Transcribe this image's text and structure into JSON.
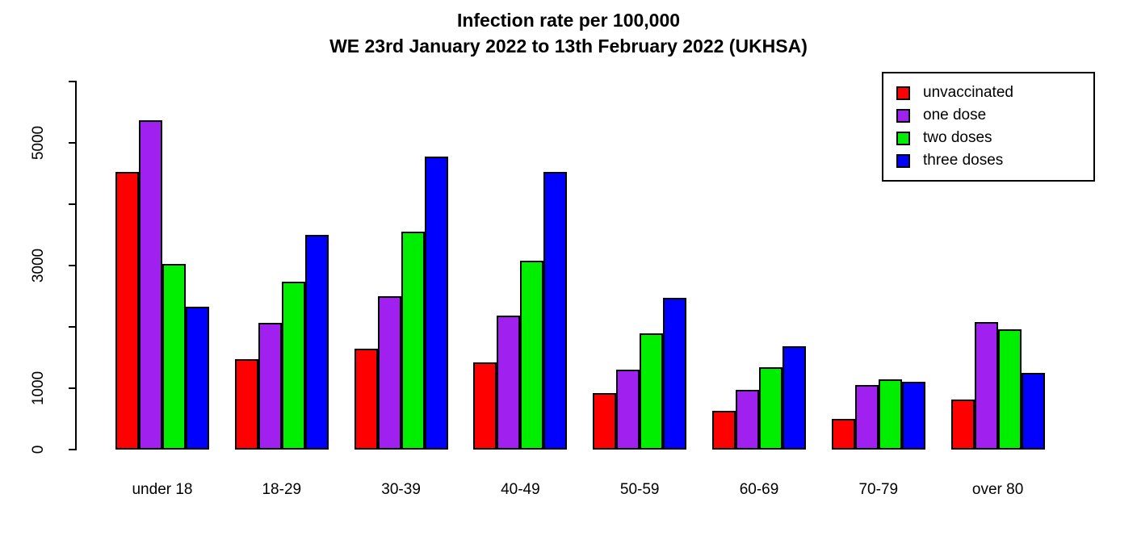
{
  "chart_data": {
    "type": "bar",
    "title": "Infection rate per 100,000",
    "subtitle": "WE 23rd January 2022 to 13th February 2022 (UKHSA)",
    "categories": [
      "under 18",
      "18-29",
      "30-39",
      "40-49",
      "50-59",
      "60-69",
      "70-79",
      "over 80"
    ],
    "series": [
      {
        "name": "unvaccinated",
        "color": "#FF0000",
        "values": [
          4520,
          1470,
          1650,
          1420,
          920,
          630,
          500,
          810
        ]
      },
      {
        "name": "one dose",
        "color": "#A020F0",
        "values": [
          5370,
          2060,
          2500,
          2180,
          1300,
          980,
          1050,
          2080
        ]
      },
      {
        "name": "two doses",
        "color": "#00EE00",
        "values": [
          3020,
          2740,
          3550,
          3080,
          1900,
          1340,
          1140,
          1960
        ]
      },
      {
        "name": "three doses",
        "color": "#0000FF",
        "values": [
          2330,
          3500,
          4770,
          4520,
          2480,
          1680,
          1110,
          1250
        ]
      }
    ],
    "ylim": [
      0,
      6000
    ],
    "ytick_values": [
      0,
      1000,
      2000,
      3000,
      4000,
      5000,
      6000
    ],
    "ytick_labels_shown": [
      "0",
      "1000",
      "3000",
      "5000"
    ],
    "xlabel": "",
    "ylabel": "",
    "grid": false,
    "legend_position": "top-right"
  }
}
